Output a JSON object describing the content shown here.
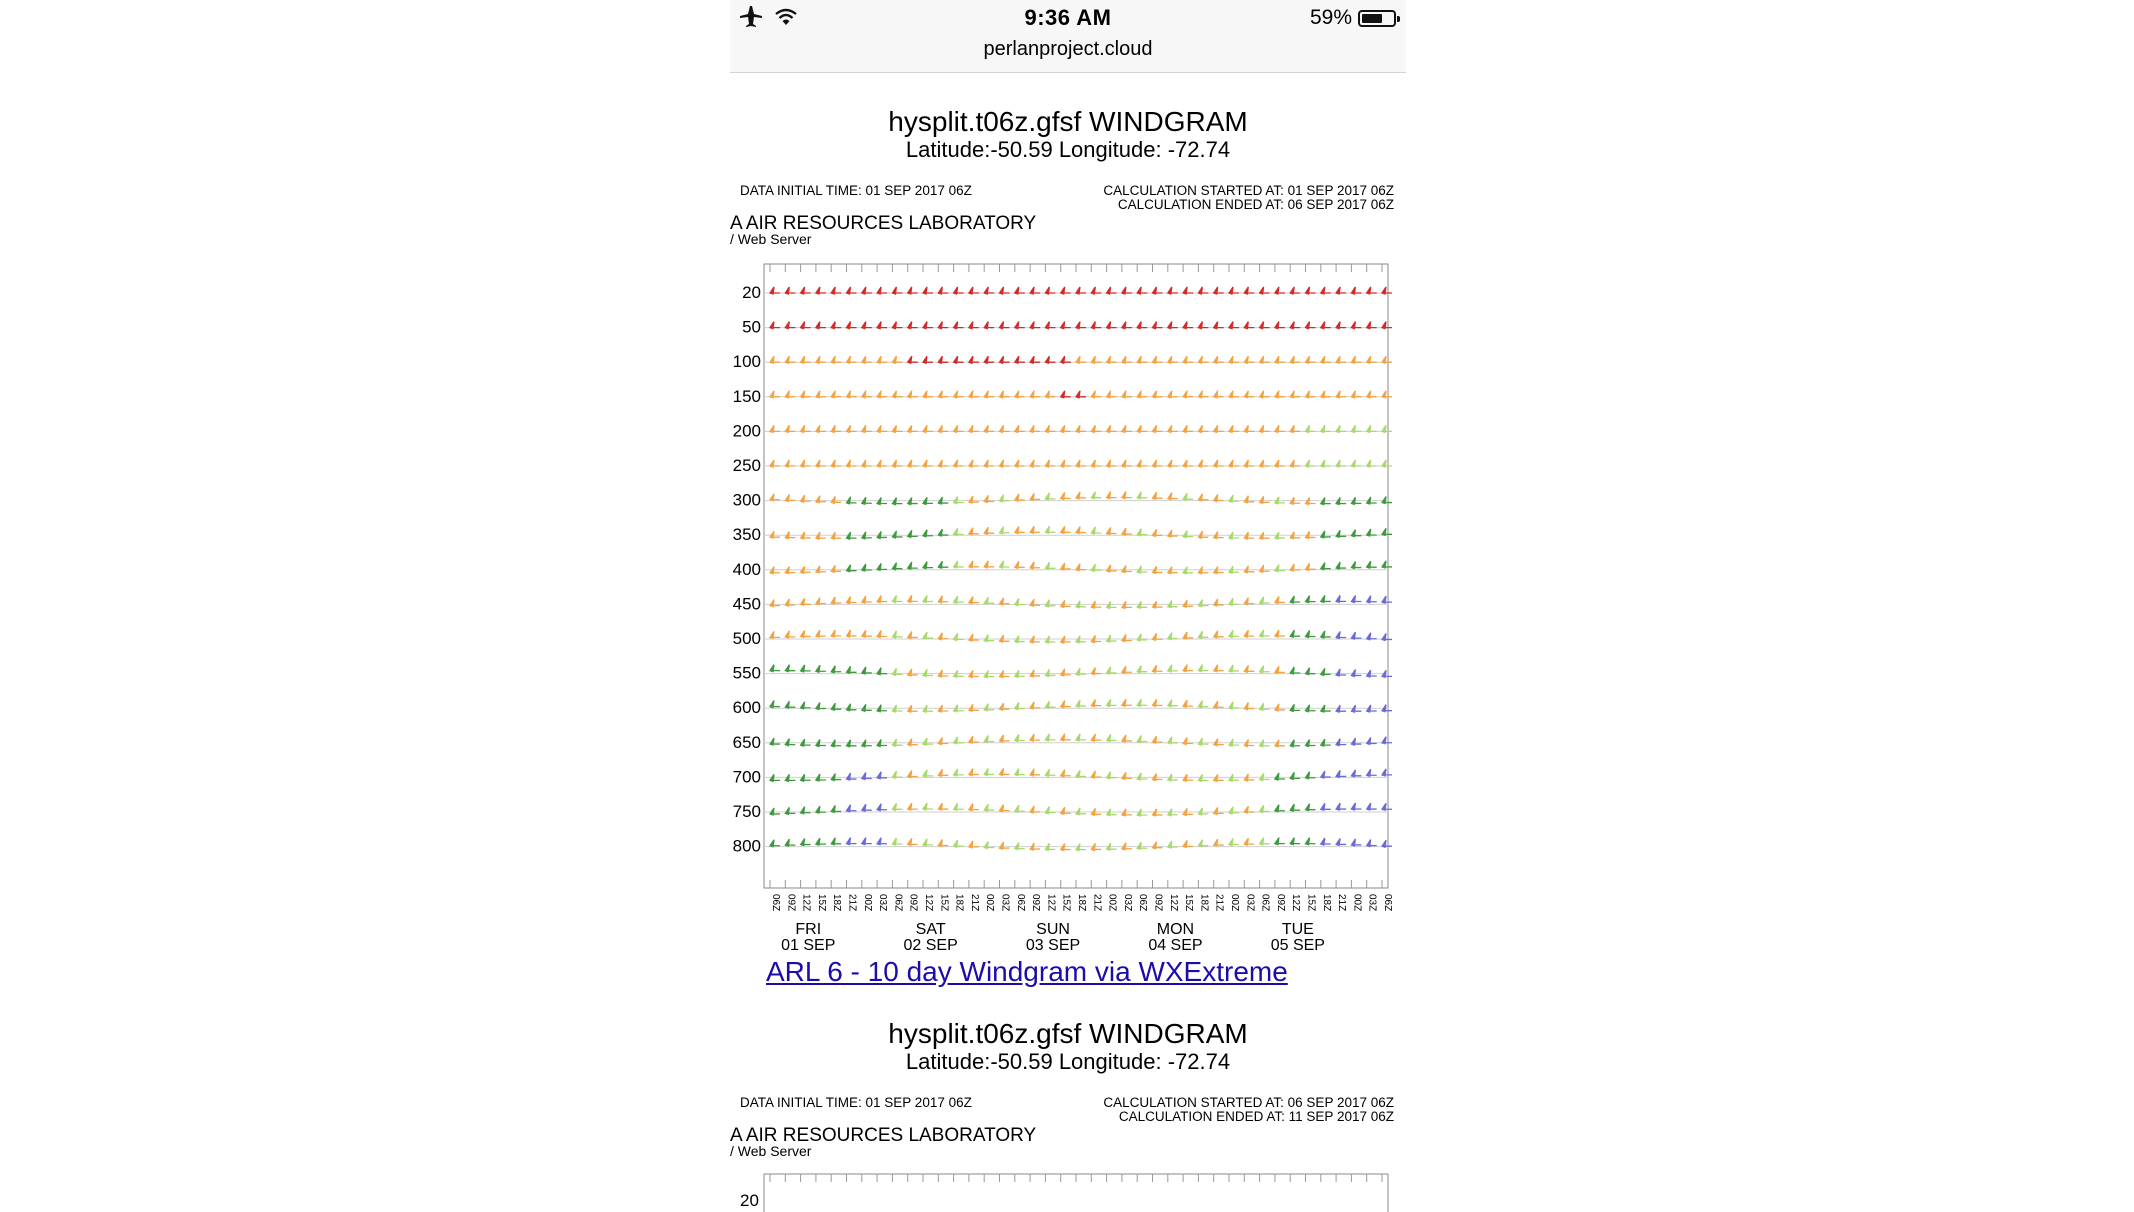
{
  "status_bar": {
    "time": "9:36 AM",
    "battery": "59%",
    "url": "perlanproject.cloud"
  },
  "windgram1": {
    "title": "hysplit.t06z.gfsf WINDGRAM",
    "subtitle": "Latitude:-50.59 Longitude: -72.74",
    "initial_time": "DATA INITIAL TIME: 01 SEP 2017 06Z",
    "calc_started": "CALCULATION STARTED AT: 01 SEP 2017 06Z",
    "calc_ended": "CALCULATION ENDED AT: 06 SEP 2017 06Z",
    "lab": "A AIR RESOURCES LABORATORY",
    "server": "/ Web Server"
  },
  "link_10day": "ARL 6 - 10 day Windgram via WXExtreme ",
  "windgram2": {
    "title": "hysplit.t06z.gfsf WINDGRAM",
    "subtitle": "Latitude:-50.59 Longitude: -72.74",
    "initial_time": "DATA INITIAL TIME: 01 SEP 2017 06Z",
    "calc_started": "CALCULATION STARTED AT: 06 SEP 2017 06Z",
    "calc_ended": "CALCULATION ENDED AT: 11 SEP 2017 06Z",
    "lab": "A AIR RESOURCES LABORATORY",
    "server": "/ Web Server"
  },
  "chart_data": {
    "type": "windgram",
    "y_levels": [
      "20",
      "50",
      "100",
      "150",
      "200",
      "250",
      "300",
      "350",
      "400",
      "450",
      "500",
      "550",
      "600",
      "650",
      "700",
      "750",
      "800"
    ],
    "x_tick_labels": [
      "06Z",
      "09Z",
      "12Z",
      "15Z",
      "18Z",
      "21Z",
      "00Z",
      "03Z",
      "06Z",
      "09Z",
      "12Z",
      "15Z",
      "18Z",
      "21Z",
      "00Z",
      "03Z",
      "06Z",
      "09Z",
      "12Z",
      "15Z",
      "18Z",
      "21Z",
      "00Z",
      "03Z",
      "06Z",
      "09Z",
      "12Z",
      "15Z",
      "18Z",
      "21Z",
      "00Z",
      "03Z",
      "06Z",
      "09Z",
      "12Z",
      "15Z",
      "18Z",
      "21Z",
      "00Z",
      "03Z",
      "06Z"
    ],
    "days": [
      {
        "day": "FRI",
        "date": "01 SEP"
      },
      {
        "day": "SAT",
        "date": "02 SEP"
      },
      {
        "day": "SUN",
        "date": "03 SEP"
      },
      {
        "day": "MON",
        "date": "04 SEP"
      },
      {
        "day": "TUE",
        "date": "05 SEP"
      }
    ],
    "colors": {
      "strong": "#d42a2a",
      "moderate": "#f4a340",
      "light": "#a8d96c",
      "calm": "#3f9a3f",
      "variable": "#6a6ad8"
    }
  }
}
